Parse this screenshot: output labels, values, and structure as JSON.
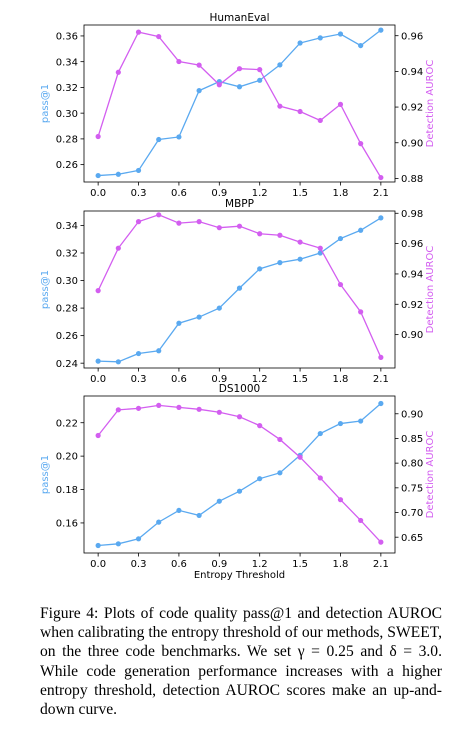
{
  "colors": {
    "pass": "#5aa9f0",
    "auroc": "#d35ef0"
  },
  "caption": {
    "text": "Figure 4: Plots of code quality pass@1 and detection AUROC when calibrating the entropy threshold of our methods, SWEET, on the three code benchmarks. We set γ = 0.25 and δ = 3.0. While code generation performance increases with a higher entropy threshold, detection AUROC scores make an up-and-down curve."
  },
  "chart_data": [
    {
      "type": "line",
      "title": "HumanEval",
      "xlabel": "",
      "ylabel_left": "pass@1",
      "ylabel_right": "Detection AUROC",
      "x": [
        0.0,
        0.15,
        0.3,
        0.45,
        0.6,
        0.75,
        0.9,
        1.05,
        1.2,
        1.35,
        1.5,
        1.65,
        1.8,
        1.95,
        2.1
      ],
      "xticks": [
        "0.0",
        "0.3",
        "0.6",
        "0.9",
        "1.2",
        "1.5",
        "1.8",
        "2.1"
      ],
      "series": [
        {
          "name": "pass@1",
          "axis": "left",
          "values": [
            0.2515,
            0.2525,
            0.2555,
            0.2795,
            0.2815,
            0.3175,
            0.3245,
            0.3205,
            0.3255,
            0.3375,
            0.3545,
            0.3585,
            0.3615,
            0.3525,
            0.3645
          ]
        },
        {
          "name": "Detection AUROC",
          "axis": "right",
          "values": [
            0.9035,
            0.9395,
            0.962,
            0.9595,
            0.9455,
            0.9435,
            0.9325,
            0.9415,
            0.941,
            0.9205,
            0.9175,
            0.9125,
            0.9215,
            0.8995,
            0.8805
          ]
        }
      ],
      "ylim_left": [
        0.2465,
        0.3685
      ],
      "yticks_left": [
        "0.26",
        "0.28",
        "0.30",
        "0.32",
        "0.34",
        "0.36"
      ],
      "ylim_right": [
        0.878,
        0.966
      ],
      "yticks_right": [
        "0.88",
        "0.90",
        "0.92",
        "0.94",
        "0.96"
      ]
    },
    {
      "type": "line",
      "title": "MBPP",
      "xlabel": "",
      "ylabel_left": "pass@1",
      "ylabel_right": "Detection AUROC",
      "x": [
        0.0,
        0.15,
        0.3,
        0.45,
        0.6,
        0.75,
        0.9,
        1.05,
        1.2,
        1.35,
        1.5,
        1.65,
        1.8,
        1.95,
        2.1
      ],
      "xticks": [
        "0.0",
        "0.3",
        "0.6",
        "0.9",
        "1.2",
        "1.5",
        "1.8",
        "2.1"
      ],
      "series": [
        {
          "name": "pass@1",
          "axis": "left",
          "values": [
            0.2415,
            0.241,
            0.247,
            0.249,
            0.269,
            0.2735,
            0.28,
            0.2945,
            0.3085,
            0.313,
            0.3155,
            0.32,
            0.3305,
            0.3365,
            0.3455
          ]
        },
        {
          "name": "Detection AUROC",
          "axis": "right",
          "values": [
            0.929,
            0.957,
            0.9745,
            0.979,
            0.9735,
            0.9745,
            0.9705,
            0.9715,
            0.9665,
            0.9655,
            0.961,
            0.957,
            0.933,
            0.915,
            0.885
          ]
        }
      ],
      "ylim_left": [
        0.2365,
        0.3505
      ],
      "yticks_left": [
        "0.24",
        "0.26",
        "0.28",
        "0.30",
        "0.32",
        "0.34"
      ],
      "ylim_right": [
        0.878,
        0.9815
      ],
      "yticks_right": [
        "0.90",
        "0.92",
        "0.94",
        "0.96",
        "0.98"
      ]
    },
    {
      "type": "line",
      "title": "DS1000",
      "xlabel": "Entropy Threshold",
      "ylabel_left": "pass@1",
      "ylabel_right": "Detection AUROC",
      "x": [
        0.0,
        0.15,
        0.3,
        0.45,
        0.6,
        0.75,
        0.9,
        1.05,
        1.2,
        1.35,
        1.5,
        1.65,
        1.8,
        1.95,
        2.1
      ],
      "xticks": [
        "0.0",
        "0.3",
        "0.6",
        "0.9",
        "1.2",
        "1.5",
        "1.8",
        "2.1"
      ],
      "series": [
        {
          "name": "pass@1",
          "axis": "left",
          "values": [
            0.1465,
            0.1475,
            0.1505,
            0.1605,
            0.1675,
            0.1645,
            0.173,
            0.179,
            0.1865,
            0.19,
            0.2005,
            0.2135,
            0.2195,
            0.221,
            0.2315
          ]
        },
        {
          "name": "Detection AUROC",
          "axis": "right",
          "values": [
            0.856,
            0.908,
            0.911,
            0.917,
            0.913,
            0.909,
            0.903,
            0.894,
            0.876,
            0.848,
            0.812,
            0.77,
            0.726,
            0.684,
            0.64
          ]
        }
      ],
      "ylim_left": [
        0.142,
        0.236
      ],
      "yticks_left": [
        "0.16",
        "0.18",
        "0.20",
        "0.22"
      ],
      "ylim_right": [
        0.618,
        0.936
      ],
      "yticks_right": [
        "0.65",
        "0.70",
        "0.75",
        "0.80",
        "0.85",
        "0.90"
      ]
    }
  ]
}
